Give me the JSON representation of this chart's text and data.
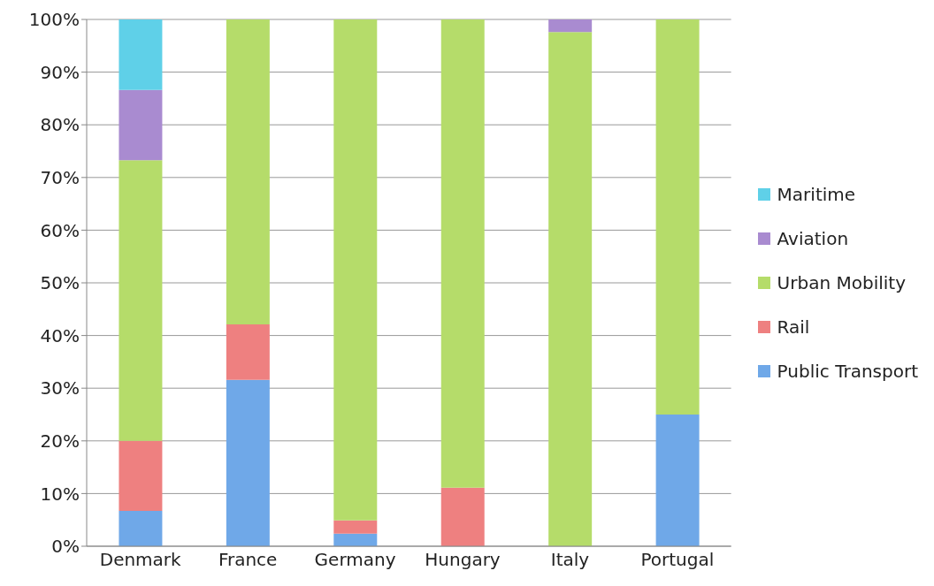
{
  "chart_data": {
    "type": "bar",
    "stacked": true,
    "categories": [
      "Denmark",
      "France",
      "Germany",
      "Hungary",
      "Italy",
      "Portugal"
    ],
    "series": [
      {
        "name": "Public Transport",
        "color": "#6fa8e8",
        "values": [
          6.7,
          31.6,
          2.4,
          0,
          0,
          25
        ]
      },
      {
        "name": "Rail",
        "color": "#ee8080",
        "values": [
          13.3,
          10.5,
          2.5,
          11.1,
          0,
          0
        ]
      },
      {
        "name": "Urban Mobility",
        "color": "#b5dc6a",
        "values": [
          53.3,
          57.9,
          95.1,
          88.9,
          97.6,
          75
        ]
      },
      {
        "name": "Aviation",
        "color": "#a98bd0",
        "values": [
          13.3,
          0,
          0,
          0,
          2.4,
          0
        ]
      },
      {
        "name": "Maritime",
        "color": "#5fd0e8",
        "values": [
          13.4,
          0,
          0,
          0,
          0,
          0
        ]
      }
    ],
    "ylim": [
      0,
      100
    ],
    "yticks": [
      {
        "value": 0,
        "label": "0%"
      },
      {
        "value": 10,
        "label": "10%"
      },
      {
        "value": 20,
        "label": "20%"
      },
      {
        "value": 30,
        "label": "30%"
      },
      {
        "value": 40,
        "label": "40%"
      },
      {
        "value": 50,
        "label": "50%"
      },
      {
        "value": 60,
        "label": "60%"
      },
      {
        "value": 70,
        "label": "70%"
      },
      {
        "value": 80,
        "label": "80%"
      },
      {
        "value": 90,
        "label": "90%"
      },
      {
        "value": 100,
        "label": "100%"
      }
    ],
    "grid": "y",
    "legend": "right"
  }
}
